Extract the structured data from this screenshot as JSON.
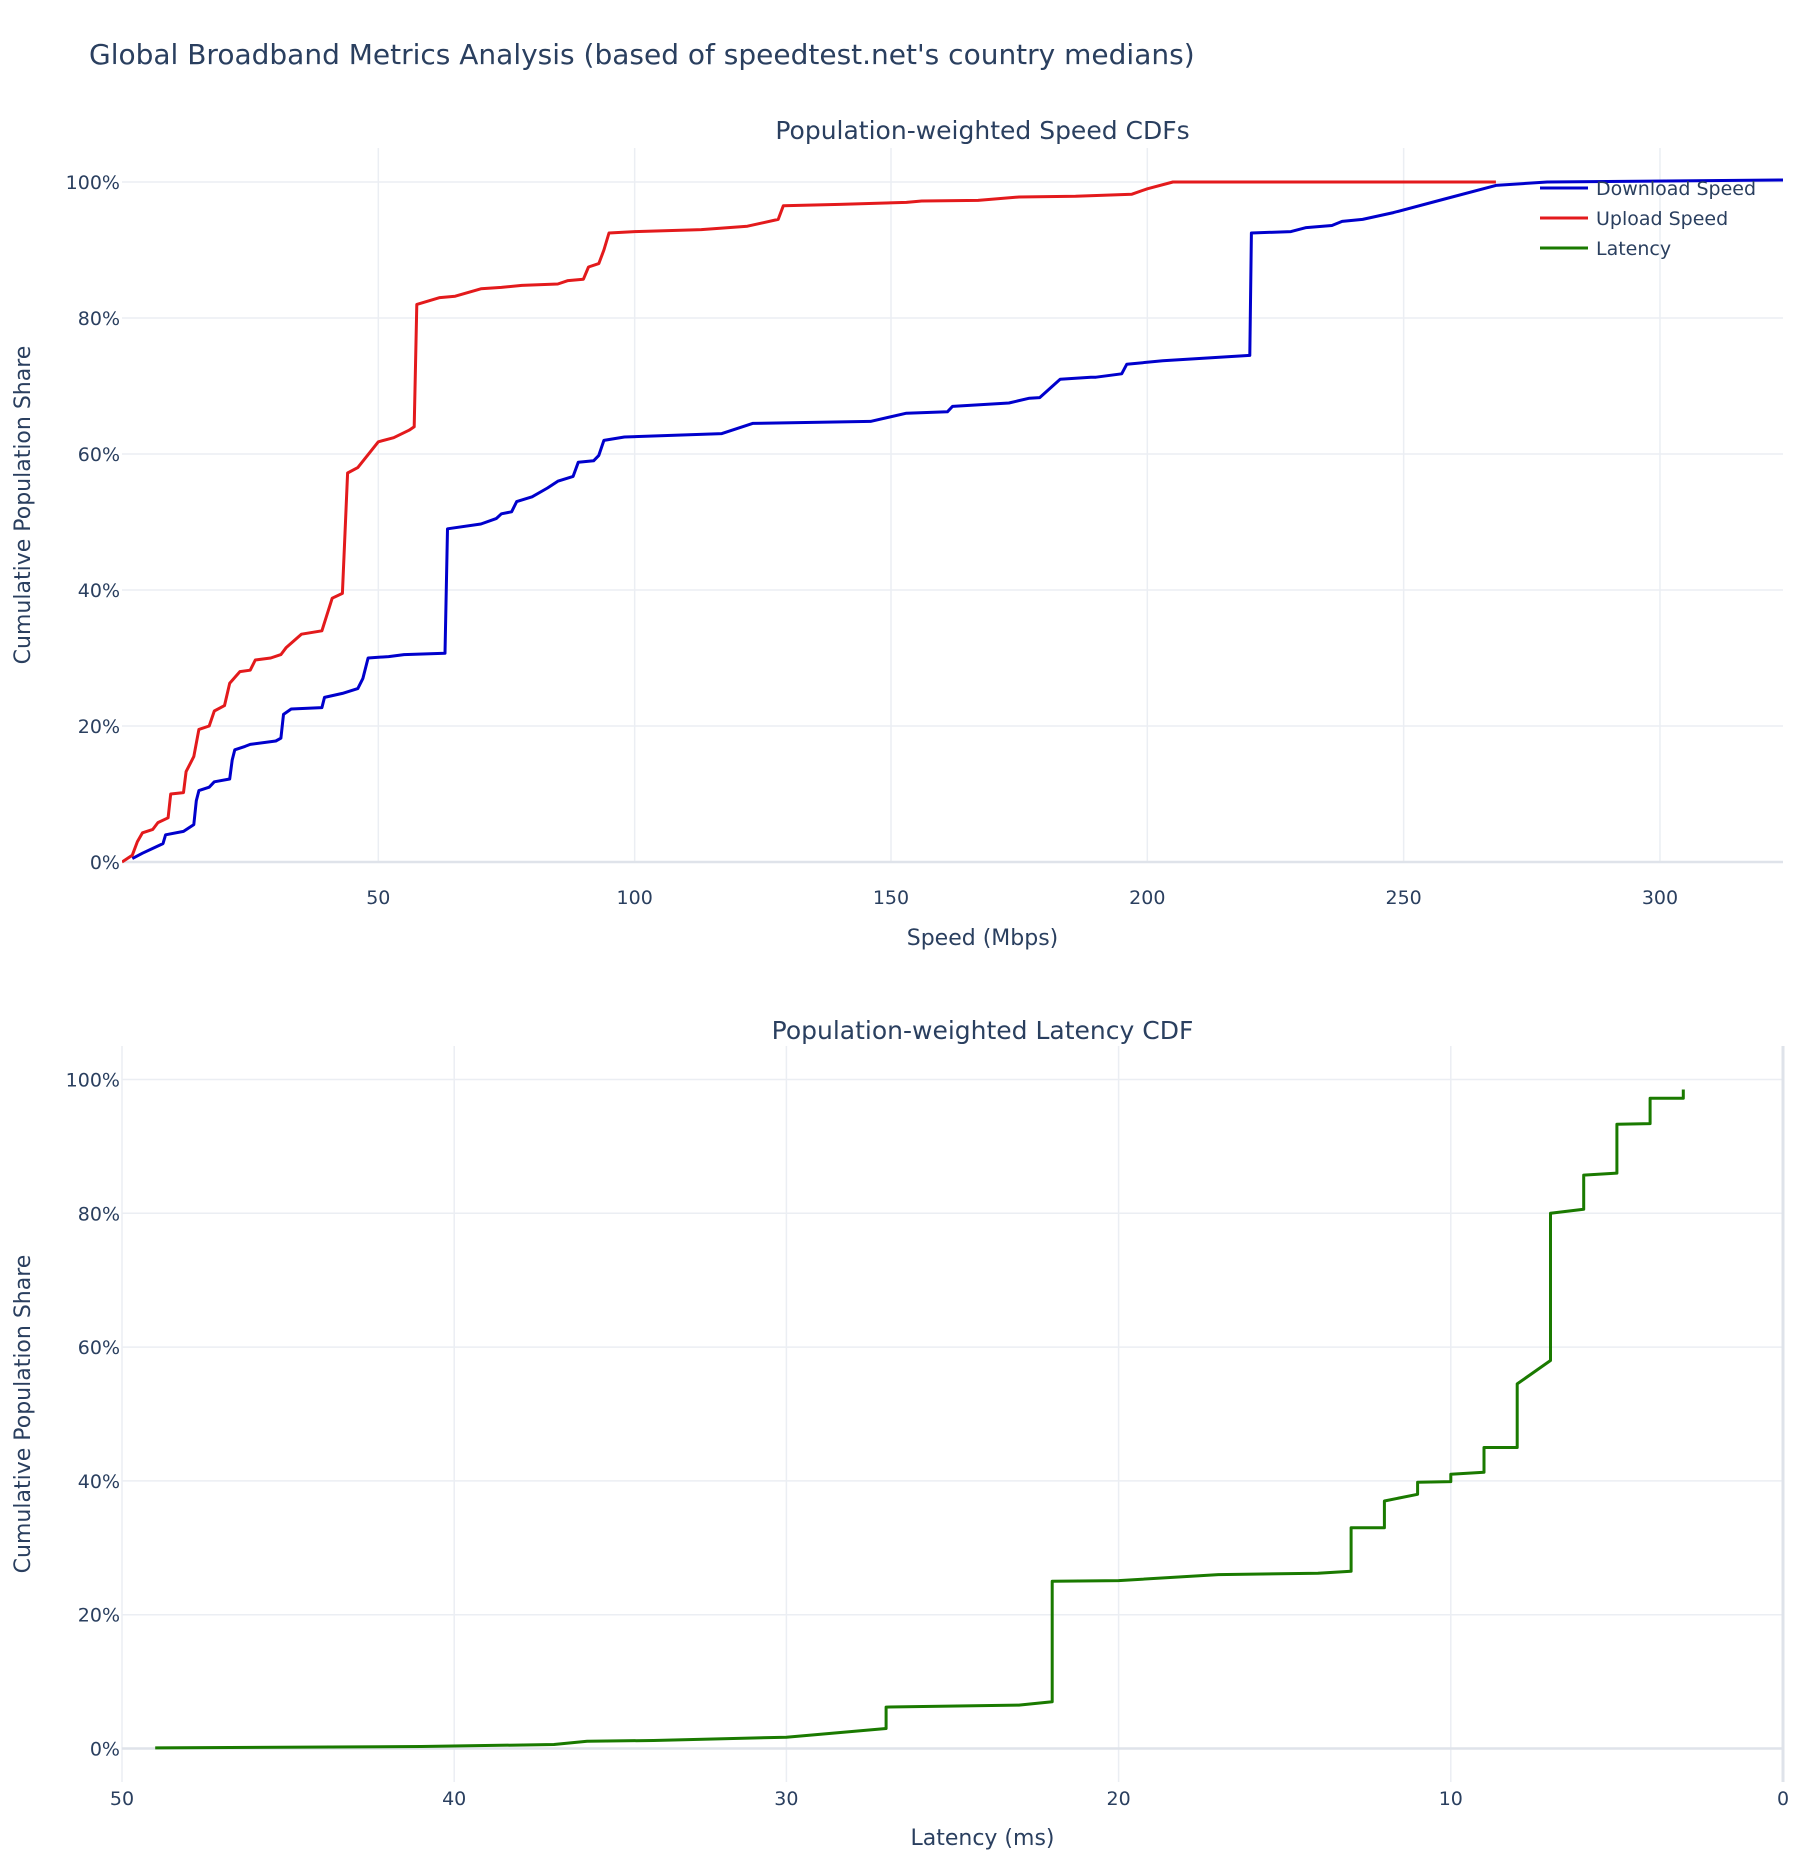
{
  "title": "Global Broadband Metrics Analysis (based of speedtest.net's country medians)",
  "chart_data": [
    {
      "type": "line",
      "title": "Population-weighted Speed CDFs",
      "xlabel": "Speed (Mbps)",
      "ylabel": "Cumulative Population Share",
      "xlim": [
        0,
        324
      ],
      "ylim": [
        0,
        1.05
      ],
      "x_ticks": [
        50,
        100,
        150,
        200,
        250,
        300
      ],
      "y_ticks": [
        0,
        0.2,
        0.4,
        0.6,
        0.8,
        1.0
      ],
      "y_tick_labels": [
        "0%",
        "20%",
        "40%",
        "60%",
        "80%",
        "100%"
      ],
      "grid": true,
      "legend": "top-right",
      "series": [
        {
          "name": "Download Speed",
          "color": "#0000cc",
          "points": [
            [
              2,
              0.005
            ],
            [
              4,
              0.013
            ],
            [
              6,
              0.02
            ],
            [
              8,
              0.027
            ],
            [
              8.5,
              0.04
            ],
            [
              12,
              0.045
            ],
            [
              14,
              0.055
            ],
            [
              14.5,
              0.09
            ],
            [
              15,
              0.105
            ],
            [
              17,
              0.11
            ],
            [
              18,
              0.118
            ],
            [
              21,
              0.122
            ],
            [
              21.5,
              0.15
            ],
            [
              22,
              0.165
            ],
            [
              24,
              0.17
            ],
            [
              25,
              0.173
            ],
            [
              30,
              0.178
            ],
            [
              31,
              0.182
            ],
            [
              31.5,
              0.217
            ],
            [
              33,
              0.225
            ],
            [
              39,
              0.227
            ],
            [
              39.5,
              0.242
            ],
            [
              43,
              0.248
            ],
            [
              46,
              0.255
            ],
            [
              47,
              0.27
            ],
            [
              48,
              0.3
            ],
            [
              52,
              0.302
            ],
            [
              55,
              0.305
            ],
            [
              63,
              0.307
            ],
            [
              63.5,
              0.49
            ],
            [
              70,
              0.497
            ],
            [
              73,
              0.505
            ],
            [
              74,
              0.512
            ],
            [
              76,
              0.515
            ],
            [
              77,
              0.53
            ],
            [
              80,
              0.537
            ],
            [
              83,
              0.55
            ],
            [
              85,
              0.56
            ],
            [
              88,
              0.567
            ],
            [
              89,
              0.588
            ],
            [
              92,
              0.59
            ],
            [
              93,
              0.598
            ],
            [
              94,
              0.62
            ],
            [
              98,
              0.625
            ],
            [
              117,
              0.63
            ],
            [
              123,
              0.645
            ],
            [
              146,
              0.648
            ],
            [
              153,
              0.66
            ],
            [
              161,
              0.662
            ],
            [
              162,
              0.67
            ],
            [
              173,
              0.675
            ],
            [
              177,
              0.682
            ],
            [
              179,
              0.683
            ],
            [
              183,
              0.71
            ],
            [
              189,
              0.713
            ],
            [
              190,
              0.713
            ],
            [
              195,
              0.718
            ],
            [
              196,
              0.732
            ],
            [
              203,
              0.737
            ],
            [
              220,
              0.745
            ],
            [
              220.3,
              0.925
            ],
            [
              228,
              0.927
            ],
            [
              231,
              0.933
            ],
            [
              236,
              0.936
            ],
            [
              238,
              0.942
            ],
            [
              242,
              0.945
            ],
            [
              248,
              0.955
            ],
            [
              258,
              0.975
            ],
            [
              268,
              0.995
            ],
            [
              278,
              1.0
            ],
            [
              324,
              1.003
            ]
          ]
        },
        {
          "name": "Upload Speed",
          "color": "#e31a1c",
          "points": [
            [
              0,
              0
            ],
            [
              2,
              0.01
            ],
            [
              3,
              0.03
            ],
            [
              4,
              0.043
            ],
            [
              6,
              0.048
            ],
            [
              7,
              0.058
            ],
            [
              9,
              0.065
            ],
            [
              9.5,
              0.1
            ],
            [
              12,
              0.102
            ],
            [
              12.5,
              0.133
            ],
            [
              14,
              0.155
            ],
            [
              15,
              0.195
            ],
            [
              17,
              0.2
            ],
            [
              18,
              0.222
            ],
            [
              20,
              0.23
            ],
            [
              21,
              0.263
            ],
            [
              23,
              0.28
            ],
            [
              25,
              0.282
            ],
            [
              26,
              0.297
            ],
            [
              29,
              0.3
            ],
            [
              31,
              0.305
            ],
            [
              32,
              0.315
            ],
            [
              35,
              0.335
            ],
            [
              39,
              0.34
            ],
            [
              41,
              0.388
            ],
            [
              43,
              0.395
            ],
            [
              44,
              0.572
            ],
            [
              46,
              0.58
            ],
            [
              50,
              0.618
            ],
            [
              53,
              0.624
            ],
            [
              56,
              0.635
            ],
            [
              57,
              0.64
            ],
            [
              57.5,
              0.82
            ],
            [
              62,
              0.83
            ],
            [
              65,
              0.832
            ],
            [
              70,
              0.843
            ],
            [
              74,
              0.845
            ],
            [
              78,
              0.848
            ],
            [
              85,
              0.85
            ],
            [
              87,
              0.855
            ],
            [
              90,
              0.857
            ],
            [
              91,
              0.875
            ],
            [
              93,
              0.88
            ],
            [
              94,
              0.9
            ],
            [
              95,
              0.925
            ],
            [
              100,
              0.927
            ],
            [
              113,
              0.93
            ],
            [
              122,
              0.935
            ],
            [
              128,
              0.945
            ],
            [
              129,
              0.965
            ],
            [
              140,
              0.967
            ],
            [
              153,
              0.97
            ],
            [
              156,
              0.972
            ],
            [
              167,
              0.973
            ],
            [
              175,
              0.978
            ],
            [
              186,
              0.979
            ],
            [
              197,
              0.982
            ],
            [
              200,
              0.99
            ],
            [
              205,
              1.0
            ],
            [
              268,
              1.0
            ]
          ]
        },
        {
          "name": "Latency",
          "color": "#1a7a00",
          "points": []
        }
      ]
    },
    {
      "type": "line",
      "title": "Population-weighted Latency CDF",
      "xlabel": "Latency (ms)",
      "ylabel": "Cumulative Population Share",
      "xlim": [
        50,
        0
      ],
      "ylim": [
        -0.05,
        1.05
      ],
      "x_ticks": [
        50,
        40,
        30,
        20,
        10,
        0
      ],
      "y_ticks": [
        0,
        0.2,
        0.4,
        0.6,
        0.8,
        1.0
      ],
      "y_tick_labels": [
        "0%",
        "20%",
        "40%",
        "60%",
        "80%",
        "100%"
      ],
      "grid": true,
      "series": [
        {
          "name": "Latency",
          "color": "#1a7a00",
          "points": [
            [
              49,
              0.001
            ],
            [
              41,
              0.003
            ],
            [
              37,
              0.006
            ],
            [
              36,
              0.011
            ],
            [
              34,
              0.012
            ],
            [
              30,
              0.017
            ],
            [
              27,
              0.03
            ],
            [
              27,
              0.062
            ],
            [
              23,
              0.065
            ],
            [
              22,
              0.07
            ],
            [
              22,
              0.25
            ],
            [
              20,
              0.251
            ],
            [
              17,
              0.26
            ],
            [
              14,
              0.262
            ],
            [
              13,
              0.265
            ],
            [
              13,
              0.33
            ],
            [
              12,
              0.33
            ],
            [
              12,
              0.37
            ],
            [
              11,
              0.38
            ],
            [
              11,
              0.398
            ],
            [
              10,
              0.399
            ],
            [
              10,
              0.41
            ],
            [
              9,
              0.413
            ],
            [
              9,
              0.45
            ],
            [
              8,
              0.45
            ],
            [
              8,
              0.545
            ],
            [
              7,
              0.58
            ],
            [
              7,
              0.8
            ],
            [
              6,
              0.806
            ],
            [
              6,
              0.857
            ],
            [
              5,
              0.86
            ],
            [
              5,
              0.933
            ],
            [
              4,
              0.934
            ],
            [
              4,
              0.972
            ],
            [
              3,
              0.972
            ],
            [
              3,
              0.985
            ]
          ]
        }
      ]
    }
  ]
}
